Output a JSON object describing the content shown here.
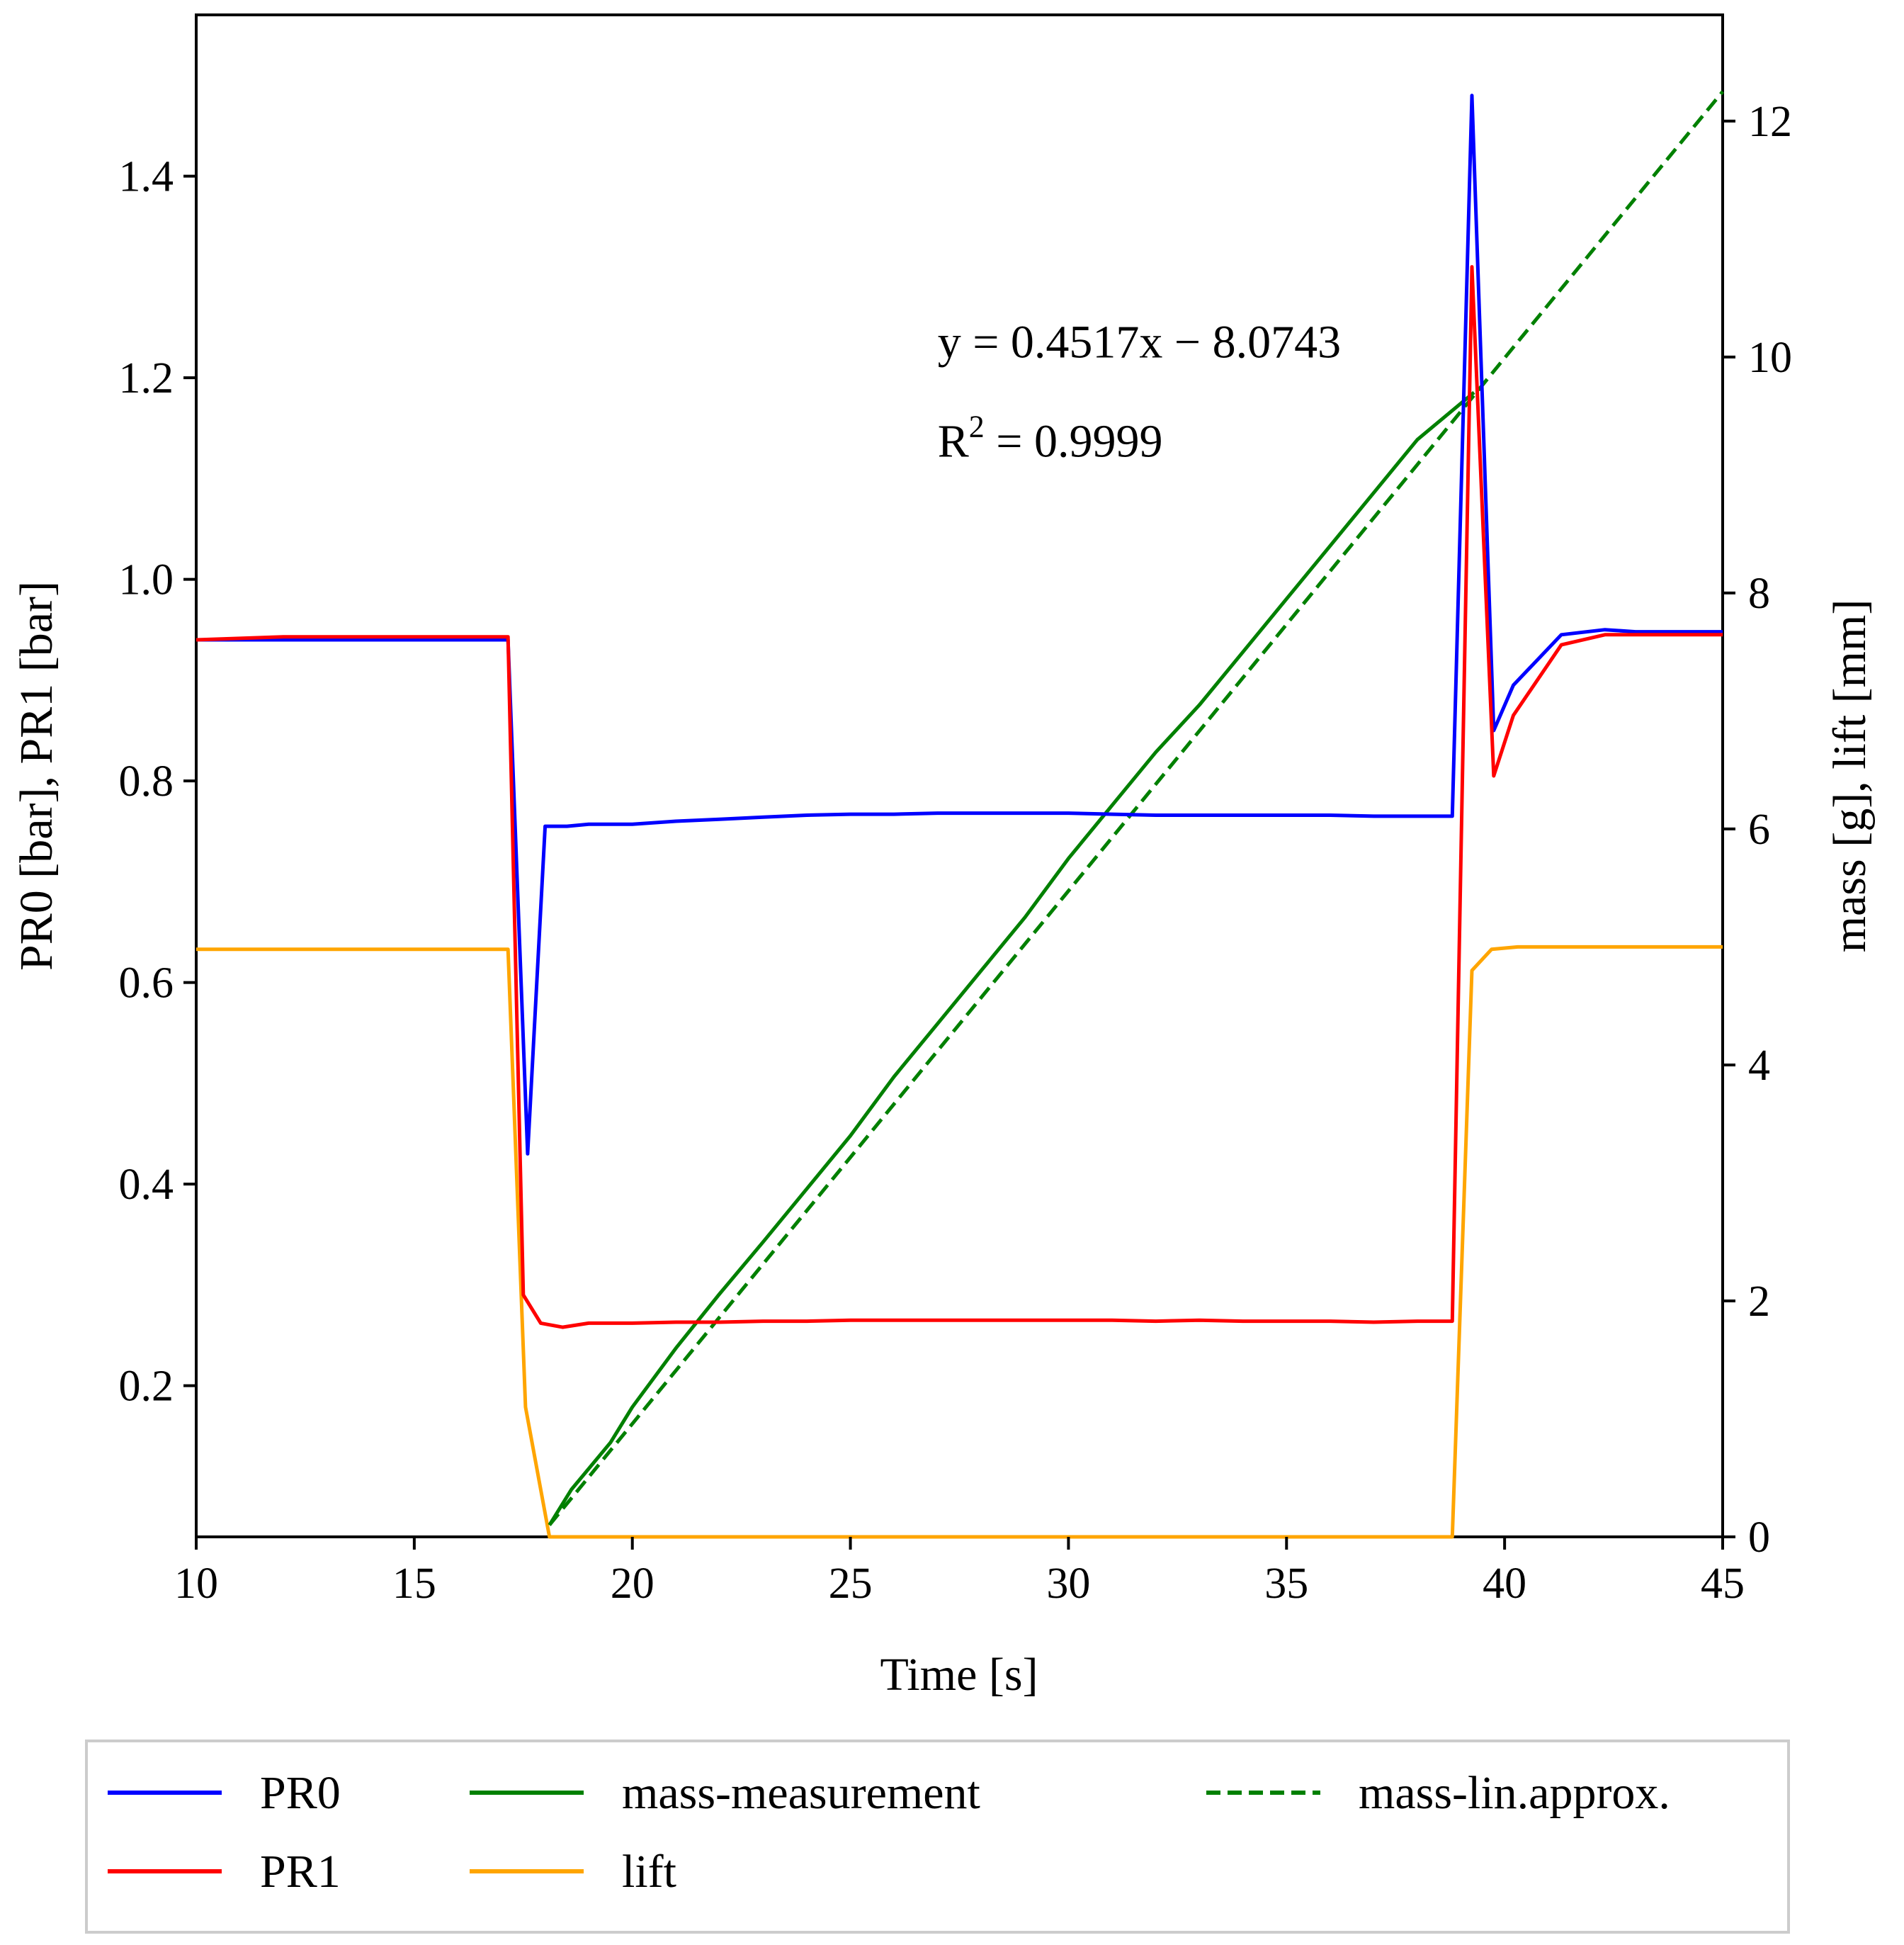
{
  "chart_data": {
    "type": "line",
    "xlabel": "Time [s]",
    "ylabel_left": "PR0 [bar], PR1 [bar]",
    "ylabel_right": "mass [g], lift [mm]",
    "xlim": [
      10,
      45
    ],
    "ylim_left": [
      0.05,
      1.56
    ],
    "ylim_right": [
      0,
      12.9
    ],
    "xticks": [
      10,
      15,
      20,
      25,
      30,
      35,
      40,
      45
    ],
    "xtick_labels": [
      "10",
      "15",
      "20",
      "25",
      "30",
      "35",
      "40",
      "45"
    ],
    "yticks_left": [
      0.2,
      0.4,
      0.6,
      0.8,
      1.0,
      1.2,
      1.4
    ],
    "ytick_labels_left": [
      "0.2",
      "0.4",
      "0.6",
      "0.8",
      "1.0",
      "1.2",
      "1.4"
    ],
    "yticks_right": [
      0,
      2,
      4,
      6,
      8,
      10,
      12
    ],
    "ytick_labels_right": [
      "0",
      "2",
      "4",
      "6",
      "8",
      "10",
      "12"
    ],
    "grid": false,
    "legend_position": "below",
    "annotation": {
      "equation": "y = 0.4517x − 8.0743",
      "r2_prefix": "R",
      "r2_sup": "2",
      "r2_suffix": " = 0.9999",
      "x": 27.0,
      "y_left": 1.22
    },
    "series": [
      {
        "name": "PR0",
        "label": "PR0",
        "color": "#0000ff",
        "axis": "left",
        "dash": "solid",
        "points": [
          [
            10,
            0.94
          ],
          [
            12,
            0.94
          ],
          [
            14,
            0.94
          ],
          [
            16,
            0.94
          ],
          [
            17.15,
            0.94
          ],
          [
            17.6,
            0.43
          ],
          [
            18.0,
            0.755
          ],
          [
            18.5,
            0.755
          ],
          [
            19,
            0.757
          ],
          [
            20,
            0.757
          ],
          [
            21,
            0.76
          ],
          [
            22,
            0.762
          ],
          [
            23,
            0.764
          ],
          [
            24,
            0.766
          ],
          [
            25,
            0.767
          ],
          [
            26,
            0.767
          ],
          [
            27,
            0.768
          ],
          [
            28,
            0.768
          ],
          [
            29,
            0.768
          ],
          [
            30,
            0.768
          ],
          [
            31,
            0.767
          ],
          [
            32,
            0.766
          ],
          [
            33,
            0.766
          ],
          [
            34,
            0.766
          ],
          [
            35,
            0.766
          ],
          [
            36,
            0.766
          ],
          [
            37,
            0.765
          ],
          [
            38,
            0.765
          ],
          [
            38.8,
            0.765
          ],
          [
            39.25,
            1.48
          ],
          [
            39.75,
            0.85
          ],
          [
            40.2,
            0.895
          ],
          [
            41.3,
            0.945
          ],
          [
            42.3,
            0.95
          ],
          [
            43,
            0.948
          ],
          [
            44,
            0.948
          ],
          [
            45,
            0.948
          ]
        ]
      },
      {
        "name": "PR1",
        "label": "PR1",
        "color": "#ff0000",
        "axis": "left",
        "dash": "solid",
        "points": [
          [
            10,
            0.94
          ],
          [
            12,
            0.943
          ],
          [
            14,
            0.943
          ],
          [
            16,
            0.943
          ],
          [
            17.15,
            0.943
          ],
          [
            17.5,
            0.29
          ],
          [
            17.9,
            0.262
          ],
          [
            18.4,
            0.258
          ],
          [
            19,
            0.262
          ],
          [
            20,
            0.262
          ],
          [
            21,
            0.263
          ],
          [
            22,
            0.263
          ],
          [
            23,
            0.264
          ],
          [
            24,
            0.264
          ],
          [
            25,
            0.265
          ],
          [
            26,
            0.265
          ],
          [
            27,
            0.265
          ],
          [
            28,
            0.265
          ],
          [
            29,
            0.265
          ],
          [
            30,
            0.265
          ],
          [
            31,
            0.265
          ],
          [
            32,
            0.264
          ],
          [
            33,
            0.265
          ],
          [
            34,
            0.264
          ],
          [
            35,
            0.264
          ],
          [
            36,
            0.264
          ],
          [
            37,
            0.263
          ],
          [
            38,
            0.264
          ],
          [
            38.8,
            0.264
          ],
          [
            39.25,
            1.31
          ],
          [
            39.75,
            0.805
          ],
          [
            40.2,
            0.865
          ],
          [
            41.3,
            0.935
          ],
          [
            42.3,
            0.945
          ],
          [
            43,
            0.945
          ],
          [
            44,
            0.945
          ],
          [
            45,
            0.945
          ]
        ]
      },
      {
        "name": "mass-measurement",
        "label": "mass-measurement",
        "color": "#008000",
        "axis": "right",
        "dash": "solid",
        "points": [
          [
            18.1,
            0.1
          ],
          [
            18.6,
            0.4
          ],
          [
            19.5,
            0.8
          ],
          [
            20,
            1.1
          ],
          [
            21,
            1.6
          ],
          [
            22,
            2.06
          ],
          [
            23,
            2.5
          ],
          [
            24,
            2.95
          ],
          [
            25,
            3.4
          ],
          [
            26,
            3.9
          ],
          [
            27,
            4.35
          ],
          [
            28,
            4.8
          ],
          [
            29,
            5.25
          ],
          [
            30,
            5.75
          ],
          [
            31,
            6.2
          ],
          [
            32,
            6.65
          ],
          [
            33,
            7.05
          ],
          [
            34,
            7.5
          ],
          [
            35,
            7.95
          ],
          [
            36,
            8.4
          ],
          [
            37,
            8.85
          ],
          [
            38,
            9.3
          ],
          [
            39.3,
            9.7
          ]
        ]
      },
      {
        "name": "mass-lin.approx.",
        "label": "mass-lin.approx.",
        "color": "#008000",
        "axis": "right",
        "dash": "dashed",
        "points": [
          [
            18.1,
            0.1
          ],
          [
            45,
            12.25
          ]
        ]
      },
      {
        "name": "lift",
        "label": "lift",
        "color": "#ffa500",
        "axis": "right",
        "dash": "solid",
        "points": [
          [
            10,
            4.98
          ],
          [
            17.15,
            4.98
          ],
          [
            17.55,
            1.1
          ],
          [
            18.1,
            0
          ],
          [
            38.8,
            0
          ],
          [
            39.25,
            4.8
          ],
          [
            39.7,
            4.98
          ],
          [
            40.3,
            5.0
          ],
          [
            45,
            5.0
          ]
        ]
      }
    ],
    "legend": [
      {
        "label": "PR0",
        "color": "#0000ff",
        "dash": "solid"
      },
      {
        "label": "PR1",
        "color": "#ff0000",
        "dash": "solid"
      },
      {
        "label": "mass-measurement",
        "color": "#008000",
        "dash": "solid"
      },
      {
        "label": "lift",
        "color": "#ffa500",
        "dash": "solid"
      },
      {
        "label": "mass-lin.approx.",
        "color": "#008000",
        "dash": "dashed"
      }
    ]
  }
}
